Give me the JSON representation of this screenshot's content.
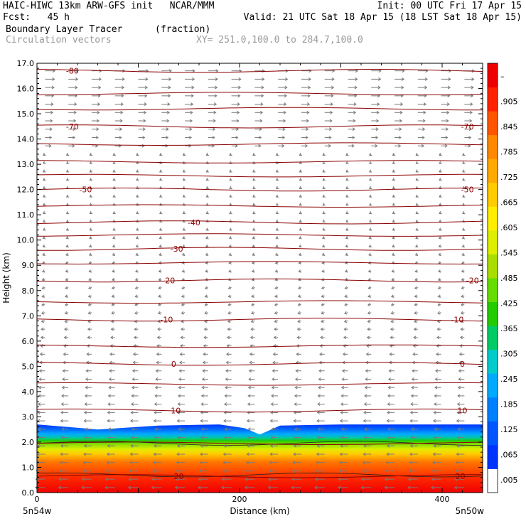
{
  "header": {
    "line1_left": "HAIC-HIWC 13km ARW-GFS init   NCAR/MMM",
    "line1_right": "Init: 00 UTC Fri 17 Apr 15",
    "line2_left": "Fcst:   45 h",
    "line2_right": "Valid: 21 UTC Sat 18 Apr 15 (18 LST Sat 18 Apr 15)",
    "line3_field": "Boundary Layer Tracer",
    "line3_units": "(fraction)",
    "line4_field": "Circulation vectors",
    "line4_xy": "XY= 251.0,100.0 to 284.7,100.0"
  },
  "colors": {
    "contour": "#8b0000",
    "vector": "#7a7a7a",
    "frame": "#000000"
  },
  "chart_data": {
    "type": "heatmap",
    "xlabel": "Distance (km)",
    "ylabel": "Height (km)",
    "xlim": [
      0,
      440
    ],
    "ylim": [
      0,
      17
    ],
    "x_ticks": [
      0,
      200,
      400
    ],
    "y_ticks": [
      "0.0",
      "1.0",
      "2.0",
      "3.0",
      "4.0",
      "5.0",
      "6.0",
      "7.0",
      "8.0",
      "9.0",
      "10.0",
      "11.0",
      "12.0",
      "13.0",
      "14.0",
      "15.0",
      "16.0",
      "17.0"
    ],
    "x_end_labels": {
      "left": "5n54w",
      "right": "5n50w"
    },
    "colorbar": {
      "labels": [
        ".005",
        ".065",
        ".125",
        ".185",
        ".245",
        ".305",
        ".365",
        ".425",
        ".485",
        ".545",
        ".605",
        ".665",
        ".725",
        ".785",
        ".845",
        ".905",
        "–"
      ],
      "colors": [
        "#ffffff",
        "#0033ff",
        "#0055ff",
        "#0080ff",
        "#00aaff",
        "#00cccc",
        "#00cc66",
        "#22cc00",
        "#66dd00",
        "#aadd00",
        "#ddee00",
        "#ffee00",
        "#ffcc00",
        "#ffaa00",
        "#ff8800",
        "#ff5500",
        "#ff2200",
        "#ee0000"
      ]
    },
    "tracer_top_km": [
      {
        "x": 0,
        "z": 2.7
      },
      {
        "x": 60,
        "z": 2.5
      },
      {
        "x": 120,
        "z": 2.65
      },
      {
        "x": 180,
        "z": 2.7
      },
      {
        "x": 205,
        "z": 2.55
      },
      {
        "x": 220,
        "z": 2.3
      },
      {
        "x": 240,
        "z": 2.65
      },
      {
        "x": 300,
        "z": 2.7
      },
      {
        "x": 440,
        "z": 2.7
      }
    ],
    "temperature_contours": [
      {
        "value": 20,
        "z": 0.65
      },
      {
        "value": 10,
        "z": 3.25
      },
      {
        "value": 0,
        "z": 5.1
      },
      {
        "value": -10,
        "z": 6.85
      },
      {
        "value": -20,
        "z": 8.4
      },
      {
        "value": -30,
        "z": 9.65
      },
      {
        "value": -40,
        "z": 10.7
      },
      {
        "value": -50,
        "z": 12.0
      },
      {
        "value": -70,
        "z": 14.5
      },
      {
        "value": -80,
        "z": 16.7
      }
    ],
    "contour_labels": [
      {
        "text": "-80",
        "x": 35,
        "z": 16.7
      },
      {
        "text": "-70",
        "x": 35,
        "z": 14.5
      },
      {
        "text": "-70",
        "x": 425,
        "z": 14.5
      },
      {
        "text": "-50",
        "x": 48,
        "z": 12.0
      },
      {
        "text": "-50",
        "x": 425,
        "z": 12.0
      },
      {
        "text": "-40",
        "x": 155,
        "z": 10.7
      },
      {
        "text": "-30",
        "x": 138,
        "z": 9.65
      },
      {
        "text": "-20",
        "x": 130,
        "z": 8.4
      },
      {
        "text": "-20",
        "x": 430,
        "z": 8.4
      },
      {
        "text": "-10",
        "x": 128,
        "z": 6.85
      },
      {
        "text": "-10",
        "x": 415,
        "z": 6.85
      },
      {
        "text": "0",
        "x": 135,
        "z": 5.1
      },
      {
        "text": "0",
        "x": 420,
        "z": 5.1
      },
      {
        "text": "10",
        "x": 137,
        "z": 3.25
      },
      {
        "text": "10",
        "x": 420,
        "z": 3.25
      },
      {
        "text": "20",
        "x": 140,
        "z": 0.65
      },
      {
        "text": "20",
        "x": 418,
        "z": 0.65
      }
    ]
  }
}
